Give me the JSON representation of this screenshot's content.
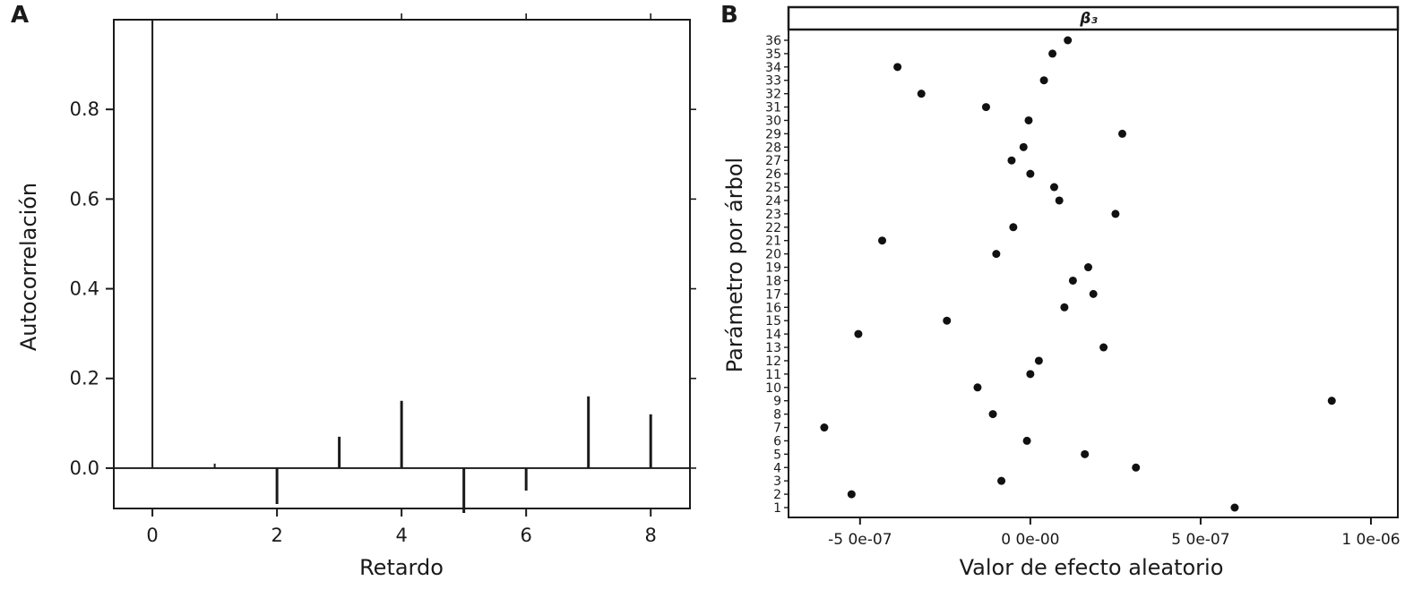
{
  "colors": {
    "ink": "#1a1a1a",
    "background": "#ffffff",
    "point": "#111111"
  },
  "panels": {
    "a": {
      "label": "A",
      "xlabel": "Retardo",
      "ylabel": "Autocorrelación"
    },
    "b": {
      "label": "B",
      "title": "β₃",
      "xlabel": "Valor de efecto aleatorio",
      "ylabel": "Parámetro por árbol"
    }
  },
  "chart_data": [
    {
      "type": "bar",
      "subtype": "acf-spike-plot",
      "panel": "A",
      "title": "",
      "xlabel": "Retardo",
      "ylabel": "Autocorrelación",
      "x": [
        0,
        1,
        2,
        3,
        4,
        5,
        6,
        7,
        8
      ],
      "values": [
        1.0,
        0.01,
        -0.08,
        0.07,
        0.15,
        -0.1,
        -0.05,
        0.16,
        0.12
      ],
      "xticks": [
        0,
        2,
        4,
        6,
        8
      ],
      "xtick_labels": [
        "0",
        "2",
        "4",
        "6",
        "8"
      ],
      "yticks": [
        0,
        0.2,
        0.4,
        0.6,
        0.8
      ],
      "ytick_labels": [
        "0.0",
        "0.2",
        "0.4",
        "0.6",
        "0.8"
      ],
      "xlim": [
        -0.62,
        8.63
      ],
      "ylim": [
        -0.09,
        1.0
      ],
      "zero_line": true,
      "grid": false
    },
    {
      "type": "scatter",
      "subtype": "dotplot",
      "panel": "B",
      "title": "β₃",
      "xlabel": "Valor de efecto aleatorio",
      "ylabel": "Parámetro por árbol",
      "categories": [
        1,
        2,
        3,
        4,
        5,
        6,
        7,
        8,
        9,
        10,
        11,
        12,
        13,
        14,
        15,
        16,
        17,
        18,
        19,
        20,
        21,
        22,
        23,
        24,
        25,
        26,
        27,
        28,
        29,
        30,
        31,
        32,
        33,
        34,
        35,
        36
      ],
      "x_values": [
        6e-07,
        -5.25e-07,
        -8.5e-08,
        3.1e-07,
        1.6e-07,
        -1e-08,
        -6.05e-07,
        -1.1e-07,
        8.85e-07,
        -1.55e-07,
        0,
        2.5e-08,
        2.15e-07,
        -5.05e-07,
        -2.45e-07,
        1e-07,
        1.85e-07,
        1.25e-07,
        1.7e-07,
        -1e-07,
        -4.35e-07,
        -5e-08,
        2.5e-07,
        8.5e-08,
        7e-08,
        0,
        -5.5e-08,
        -2e-08,
        2.7e-07,
        -5e-09,
        -1.3e-07,
        -3.2e-07,
        4e-08,
        -3.9e-07,
        6.5e-08,
        1.1e-07
      ],
      "xticks": [
        -5e-07,
        0,
        5e-07,
        1e-06
      ],
      "xtick_labels": [
        "-5 0e-07",
        "0 0e-00",
        "5 0e-07",
        "1 0e-06"
      ],
      "xlim": [
        -7.1e-07,
        1.079e-06
      ],
      "ylim": [
        1,
        36
      ],
      "legend": "none",
      "grid": false,
      "point_color": "#111111"
    }
  ]
}
